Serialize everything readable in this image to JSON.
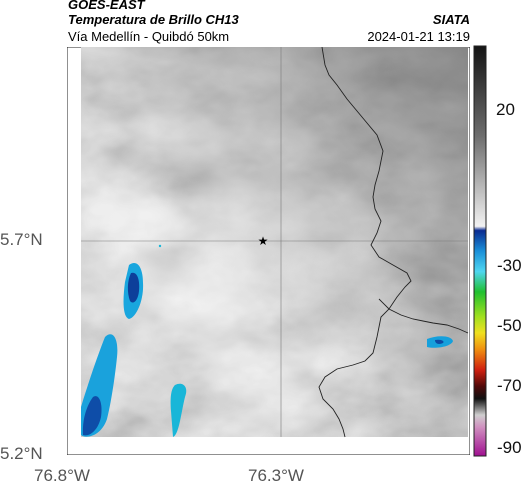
{
  "header": {
    "satellite": "GOES-EAST",
    "product": "Temperatura de Brillo CH13",
    "source": "SIATA",
    "region": "Vía Medellín - Quibdó 50km",
    "datetime": "2024-01-21 13:19"
  },
  "axes": {
    "y_ticks": [
      "5.7°N",
      "5.2°N"
    ],
    "x_ticks": [
      "76.8°W",
      "76.3°W"
    ]
  },
  "colorbar": {
    "labels": [
      "20",
      "-30",
      "-50",
      "-70",
      "-90"
    ],
    "unit": "",
    "stops": [
      {
        "label": "20",
        "color": "#1a1a1a"
      },
      {
        "label": "-30",
        "color": "#1060c8"
      },
      {
        "label": "-50",
        "color": "#f0e020"
      },
      {
        "label": "-70",
        "color": "#600010"
      },
      {
        "label": "-90",
        "color": "#c040a0"
      }
    ]
  },
  "map": {
    "marker": "star-icon",
    "colors": {
      "land_gray": "#b4b4b4",
      "cold_cloud": "#1a8fd0",
      "border": "#222222",
      "grid": "#7a7a7a"
    }
  }
}
